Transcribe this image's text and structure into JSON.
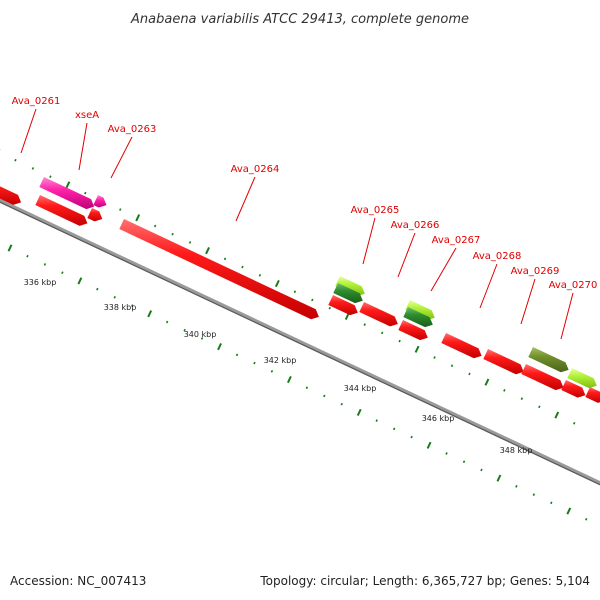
{
  "title": "Anabaena variabilis ATCC 29413, complete genome",
  "footer": {
    "accession": "Accession: NC_007413",
    "summary": "Topology: circular; Length: 6,365,727 bp; Genes: 5,104"
  },
  "colors": {
    "gene_red": "#ff1010",
    "gene_magenta": "#ff22aa",
    "gene_lime": "#b2f23a",
    "gene_darkgreen": "#2e8b2e",
    "gene_olive": "#6f8f2a",
    "label_red": "#e00000",
    "tick_green": "#1a7a1a",
    "backbone": "#808080"
  },
  "genes": [
    {
      "name": "",
      "type": "red"
    },
    {
      "name": "Ava_0261",
      "type": "red"
    },
    {
      "name": "xseA",
      "type": "magenta"
    },
    {
      "name": "Ava_0263",
      "type": "red"
    },
    {
      "name": "Ava_0264",
      "type": "red"
    },
    {
      "name": "Ava_0265",
      "type": "lime"
    },
    {
      "name": "Ava_0266",
      "type": "red"
    },
    {
      "name": "Ava_0267",
      "type": "lime"
    },
    {
      "name": "Ava_0268",
      "type": "red"
    },
    {
      "name": "Ava_0269",
      "type": "red"
    },
    {
      "name": "Ava_0270",
      "type": "olive"
    }
  ],
  "scale_labels": [
    "336 kbp",
    "338 kbp",
    "340 kbp",
    "342 kbp",
    "344 kbp",
    "346 kbp",
    "348 kbp"
  ]
}
